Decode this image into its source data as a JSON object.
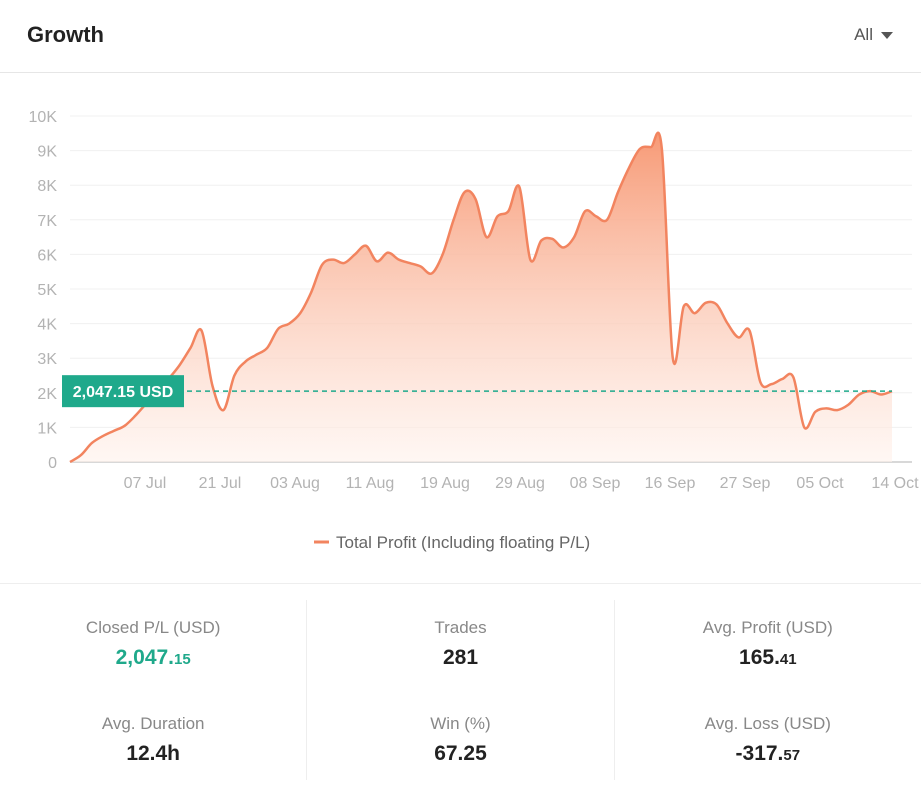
{
  "header": {
    "title": "Growth",
    "filter_label": "All"
  },
  "colors": {
    "line": "#f2845f",
    "fill_top": "#f79a76",
    "fill_bottom": "#fff2ec",
    "marker": "#1fa98b",
    "grid": "#f0f0f0",
    "axis_text": "#b3b3b3"
  },
  "chart_data": {
    "type": "area",
    "title": "",
    "xlabel": "",
    "ylabel": "",
    "ylim": [
      0,
      10000
    ],
    "y_ticks": [
      "0",
      "1K",
      "2K",
      "3K",
      "4K",
      "5K",
      "6K",
      "7K",
      "8K",
      "9K",
      "10K"
    ],
    "x_tick_labels": [
      "07 Jul",
      "21 Jul",
      "03 Aug",
      "11 Aug",
      "19 Aug",
      "29 Aug",
      "08 Sep",
      "16 Sep",
      "27 Sep",
      "05 Oct",
      "14 Oct"
    ],
    "grid": true,
    "legend_position": "bottom",
    "series": [
      {
        "name": "Total Profit (Including floating P/L)",
        "values": [
          0,
          200,
          550,
          750,
          900,
          1050,
          1350,
          1700,
          2000,
          2400,
          2800,
          3300,
          3800,
          2200,
          1500,
          2500,
          2900,
          3100,
          3300,
          3850,
          4000,
          4300,
          4900,
          5700,
          5850,
          5750,
          6000,
          6250,
          5800,
          6050,
          5850,
          5750,
          5650,
          5450,
          6000,
          7000,
          7800,
          7600,
          6500,
          7100,
          7250,
          7950,
          5850,
          6400,
          6450,
          6200,
          6500,
          7250,
          7100,
          7000,
          7800,
          8500,
          9050,
          9100,
          9050,
          3000,
          4500,
          4300,
          4600,
          4550,
          4000,
          3600,
          3800,
          2300,
          2250,
          2400,
          2450,
          1000,
          1450,
          1550,
          1500,
          1650,
          1950,
          2050,
          1950,
          2047
        ]
      }
    ],
    "reference_line": {
      "value": 2047.15,
      "label": "2,047.15 USD"
    }
  },
  "stats": {
    "closed_pl": {
      "label": "Closed P/L (USD)",
      "int": "2,047.",
      "frac": "15"
    },
    "trades": {
      "label": "Trades",
      "value": "281"
    },
    "avg_profit": {
      "label": "Avg. Profit (USD)",
      "int": "165.",
      "frac": "41"
    },
    "avg_duration": {
      "label": "Avg. Duration",
      "value": "12.4h"
    },
    "win": {
      "label": "Win (%)",
      "value": "67.25"
    },
    "avg_loss": {
      "label": "Avg. Loss (USD)",
      "int": "-317.",
      "frac": "57"
    }
  }
}
